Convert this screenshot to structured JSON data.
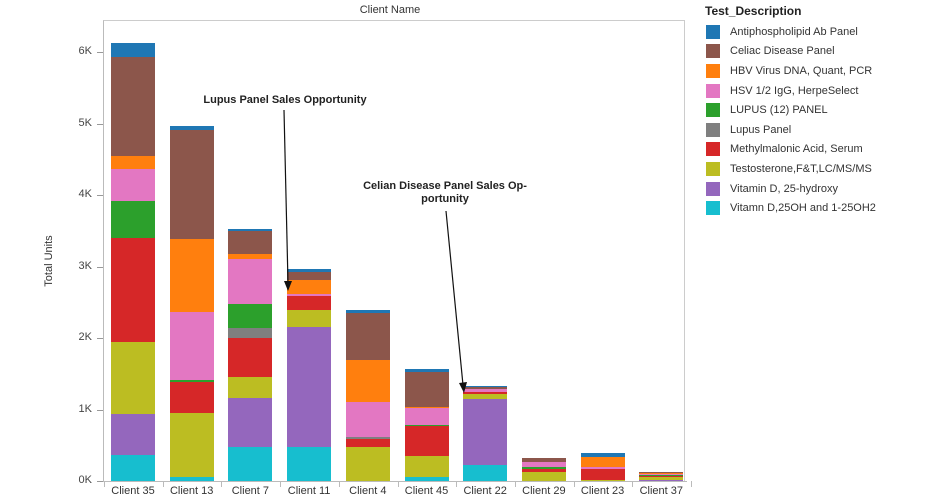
{
  "chart_data": {
    "type": "bar",
    "stacked": true,
    "title": "Client Name",
    "xlabel": "Client Name",
    "ylabel": "Total Units",
    "ylim": [
      0,
      6400
    ],
    "yticks": [
      "0K",
      "1K",
      "2K",
      "3K",
      "4K",
      "5K",
      "6K"
    ],
    "grid": false,
    "legend_position": "right",
    "legend_title": "Test_Description",
    "categories": [
      "Client 35",
      "Client 13",
      "Client 7",
      "Client 11",
      "Client 4",
      "Client 45",
      "Client 22",
      "Client 29",
      "Client 23",
      "Client 37"
    ],
    "series": [
      {
        "name": "Vitamn D,25OH and 1-25OH2",
        "color": "#17becf",
        "values": [
          360,
          50,
          470,
          480,
          0,
          50,
          220,
          0,
          0,
          0
        ]
      },
      {
        "name": "Vitamin D, 25-hydroxy",
        "color": "#9467bd",
        "values": [
          580,
          0,
          690,
          1680,
          0,
          0,
          930,
          0,
          0,
          20
        ]
      },
      {
        "name": "Testosterone,F&T,LC/MS/MS",
        "color": "#bcbd22",
        "values": [
          1000,
          900,
          290,
          230,
          470,
          300,
          60,
          120,
          20,
          30
        ]
      },
      {
        "name": "Methylmalonic Acid, Serum",
        "color": "#d62728",
        "values": [
          1460,
          430,
          550,
          200,
          120,
          420,
          30,
          50,
          150,
          20
        ]
      },
      {
        "name": "Lupus Panel",
        "color": "#7f7f7f",
        "values": [
          0,
          0,
          140,
          0,
          30,
          0,
          0,
          0,
          0,
          0
        ]
      },
      {
        "name": "LUPUS (12) PANEL",
        "color": "#2ca02c",
        "values": [
          520,
          30,
          330,
          0,
          0,
          20,
          0,
          20,
          0,
          10
        ]
      },
      {
        "name": "HSV 1/2 IgG, HerpeSelect",
        "color": "#e377c2",
        "values": [
          450,
          960,
          640,
          30,
          480,
          230,
          50,
          80,
          20,
          20
        ]
      },
      {
        "name": "HBV Virus DNA, Quant, PCR",
        "color": "#ff7f0e",
        "values": [
          180,
          1020,
          60,
          190,
          590,
          10,
          0,
          0,
          150,
          10
        ]
      },
      {
        "name": "Celiac Disease Panel",
        "color": "#8c564b",
        "values": [
          1380,
          1520,
          320,
          120,
          660,
          490,
          30,
          50,
          0,
          20
        ]
      },
      {
        "name": "Antiphospholipid Ab Panel",
        "color": "#1f77b4",
        "values": [
          200,
          60,
          40,
          30,
          40,
          40,
          10,
          0,
          50,
          0
        ]
      }
    ],
    "annotations": [
      {
        "text": "Lupus Panel Sales Opportunity",
        "target": "Client 11"
      },
      {
        "text": "Celian Disease Panel Sales Opportunity",
        "target": "Client 22"
      }
    ]
  },
  "header": {
    "title": "Client Name"
  },
  "axis": {
    "ylabel": "Total Units",
    "yticks": [
      "0K",
      "1K",
      "2K",
      "3K",
      "4K",
      "5K",
      "6K"
    ]
  },
  "annotations": {
    "lupus": "Lupus Panel Sales Opportunity",
    "celiac_line1": "Celian Disease Panel Sales Op-",
    "celiac_line2": "portunity"
  },
  "legend": {
    "title": "Test_Description",
    "items": [
      {
        "label": "Antiphospholipid Ab Panel",
        "color": "#1f77b4"
      },
      {
        "label": "Celiac Disease Panel",
        "color": "#8c564b"
      },
      {
        "label": "HBV Virus DNA, Quant, PCR",
        "color": "#ff7f0e"
      },
      {
        "label": "HSV 1/2 IgG, HerpeSelect",
        "color": "#e377c2"
      },
      {
        "label": "LUPUS (12) PANEL",
        "color": "#2ca02c"
      },
      {
        "label": "Lupus Panel",
        "color": "#7f7f7f"
      },
      {
        "label": "Methylmalonic Acid, Serum",
        "color": "#d62728"
      },
      {
        "label": "Testosterone,F&T,LC/MS/MS",
        "color": "#bcbd22"
      },
      {
        "label": "Vitamin D, 25-hydroxy",
        "color": "#9467bd"
      },
      {
        "label": "Vitamn D,25OH and 1-25OH2",
        "color": "#17becf"
      }
    ]
  }
}
